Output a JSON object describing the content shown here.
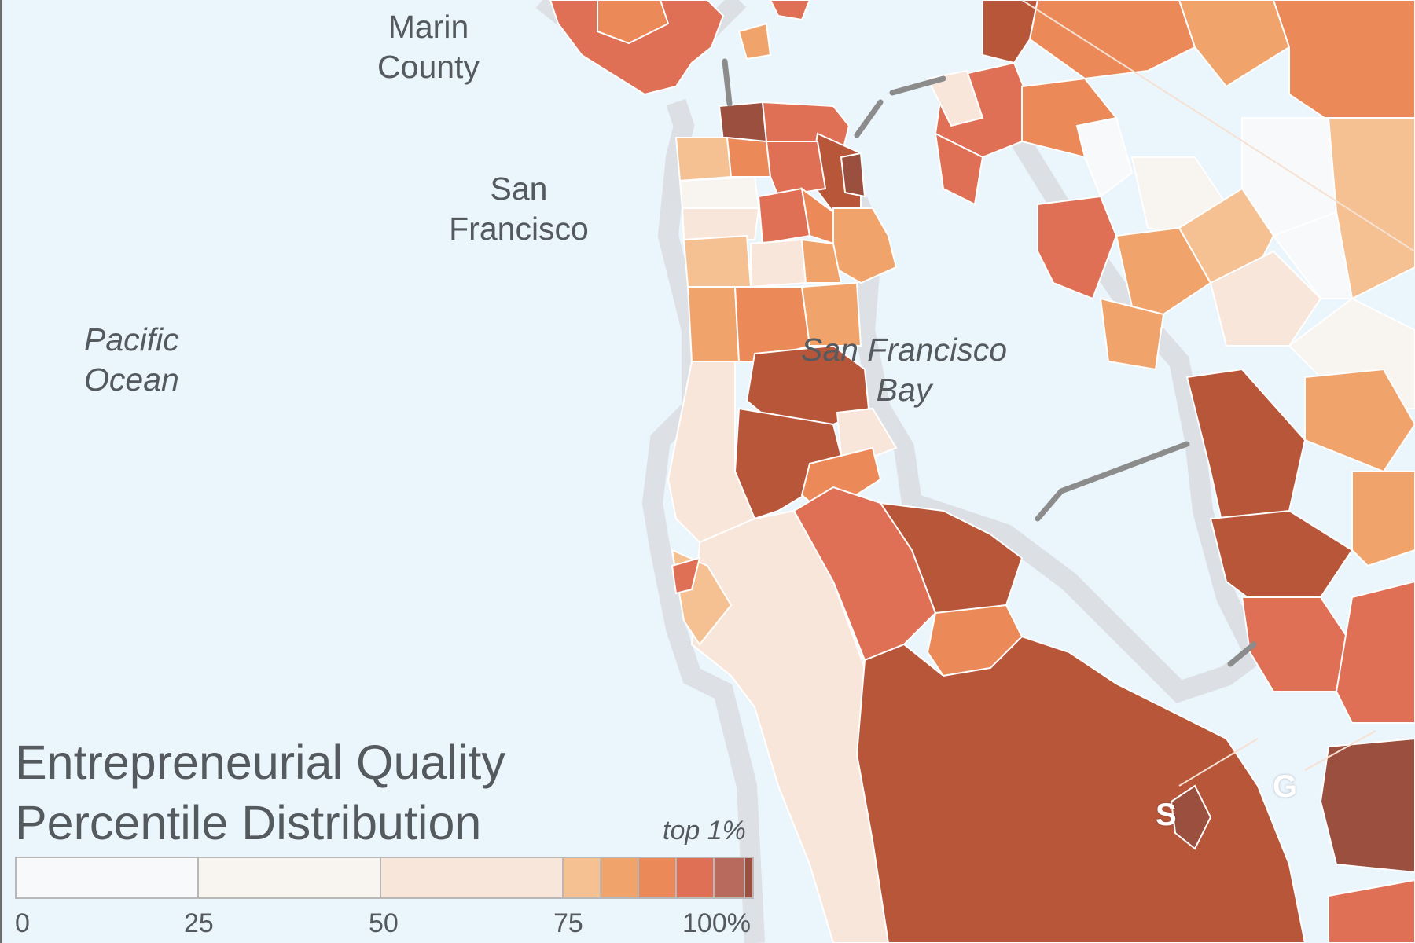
{
  "labels": {
    "marin": "Marin\nCounty",
    "san_francisco": "San\nFrancisco",
    "pacific_ocean": "Pacific\nOcean",
    "bay": "San Francisco\nBay",
    "marker_s": "S",
    "marker_g": "G"
  },
  "legend": {
    "title_line1": "Entrepreneurial Quality",
    "title_line2": "Percentile Distribution",
    "top_label": "top 1%",
    "ticks": [
      "0",
      "25",
      "50",
      "75",
      "100%"
    ],
    "bins": [
      {
        "range": "0-25",
        "color": "#f7f9fb"
      },
      {
        "range": "25-50",
        "color": "#f8f4f0"
      },
      {
        "range": "50-75",
        "color": "#f9e6da"
      },
      {
        "range": "75-80",
        "color": "#f5c193"
      },
      {
        "range": "80-85",
        "color": "#f0a46c"
      },
      {
        "range": "85-90",
        "color": "#eb8a58"
      },
      {
        "range": "90-95",
        "color": "#df7055"
      },
      {
        "range": "95-99",
        "color": "#b86a5c"
      },
      {
        "range": "99-100",
        "color": "#9b4f3e"
      }
    ]
  },
  "colors": {
    "water": "#ebf5fc",
    "text": "#555a5f",
    "boundary_line": "#8c8c8c"
  }
}
